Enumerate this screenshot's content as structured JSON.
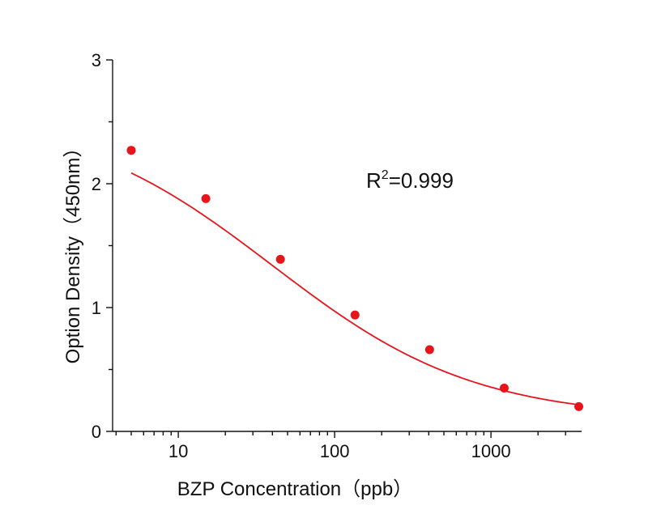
{
  "chart_data": {
    "type": "scatter",
    "title": "",
    "xlabel": "BZP  Concentration（ppb）",
    "ylabel": "Option Density（450nm）",
    "xscale": "log",
    "xlim": [
      3.8,
      3800
    ],
    "ylim": [
      0,
      3
    ],
    "x_ticks": [
      {
        "value": 10,
        "label": "10"
      },
      {
        "value": 100,
        "label": "100"
      },
      {
        "value": 1000,
        "label": "1000"
      }
    ],
    "y_ticks": [
      {
        "value": 0,
        "label": "0"
      },
      {
        "value": 1,
        "label": "1"
      },
      {
        "value": 2,
        "label": "2"
      },
      {
        "value": 3,
        "label": "3"
      }
    ],
    "grid": false,
    "legend": "none",
    "series": [
      {
        "points": [
          {
            "x": 5,
            "y": 2.27
          },
          {
            "x": 15,
            "y": 1.88
          },
          {
            "x": 45,
            "y": 1.39
          },
          {
            "x": 135,
            "y": 0.94
          },
          {
            "x": 405,
            "y": 0.66
          },
          {
            "x": 1215,
            "y": 0.35
          },
          {
            "x": 3645,
            "y": 0.2
          }
        ],
        "color": "#e8141c"
      }
    ],
    "fit": {
      "type": "4PL",
      "r2_label_base": "R",
      "r2_label_sup": "2",
      "r2_label_value": "=0.999",
      "A": 2.58,
      "D": 0.1,
      "C": 40,
      "B": 0.67,
      "color": "#e8141c"
    }
  }
}
